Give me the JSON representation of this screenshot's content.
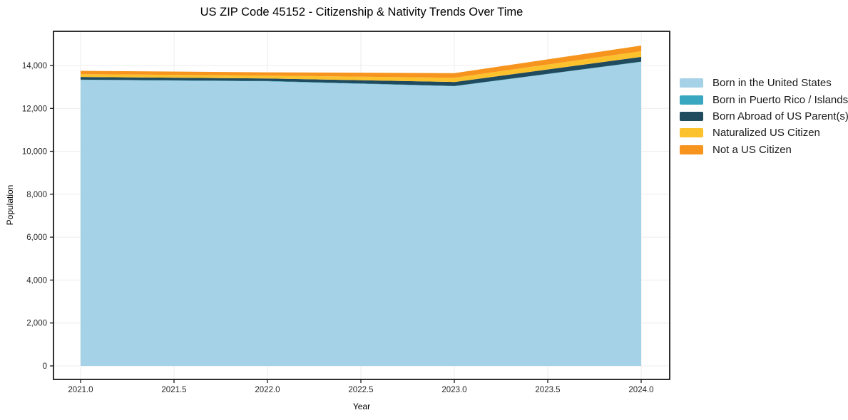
{
  "title": "US ZIP Code 45152 - Citizenship & Nativity Trends Over Time",
  "axes": {
    "xlabel": "Year",
    "ylabel": "Population"
  },
  "chart_data": {
    "type": "area",
    "stacked": true,
    "title": "US ZIP Code 45152 - Citizenship & Nativity Trends Over Time",
    "xlabel": "Year",
    "ylabel": "Population",
    "grid": true,
    "legend_position": "right-outside",
    "x": [
      2021,
      2022,
      2023,
      2024
    ],
    "series": [
      {
        "name": "Born in the United States",
        "color": "#a5d2e6",
        "values": [
          13330,
          13260,
          13030,
          14170
        ]
      },
      {
        "name": "Born in Puerto Rico / Islands",
        "color": "#3aa7c1",
        "values": [
          10,
          20,
          15,
          10
        ]
      },
      {
        "name": "Born Abroad of US Parent(s)",
        "color": "#204a5d",
        "values": [
          125,
          115,
          185,
          220
        ]
      },
      {
        "name": "Naturalized US Citizen",
        "color": "#fcc22e",
        "values": [
          135,
          135,
          200,
          265
        ]
      },
      {
        "name": "Not a US Citizen",
        "color": "#f6941e",
        "values": [
          150,
          150,
          215,
          265
        ]
      }
    ],
    "totals": [
      13750,
      13680,
      13645,
      14930
    ],
    "x_ticks": {
      "values": [
        2021.0,
        2021.5,
        2022.0,
        2022.5,
        2023.0,
        2023.5,
        2024.0
      ],
      "labels": [
        "2021.0",
        "2021.5",
        "2022.0",
        "2022.5",
        "2023.0",
        "2023.5",
        "2024.0"
      ]
    },
    "y_ticks": {
      "values": [
        0,
        2000,
        4000,
        6000,
        8000,
        10000,
        12000,
        14000
      ],
      "labels": [
        "0",
        "2,000",
        "4,000",
        "6,000",
        "8,000",
        "10,000",
        "12,000",
        "14,000"
      ]
    },
    "xlim": [
      2020.85,
      2024.15
    ],
    "ylim": [
      -660,
      15600
    ],
    "colors": {
      "grid": "#ececec",
      "spine": "#1a1a1a",
      "tick_text": "#262626",
      "background": "#ffffff"
    }
  }
}
